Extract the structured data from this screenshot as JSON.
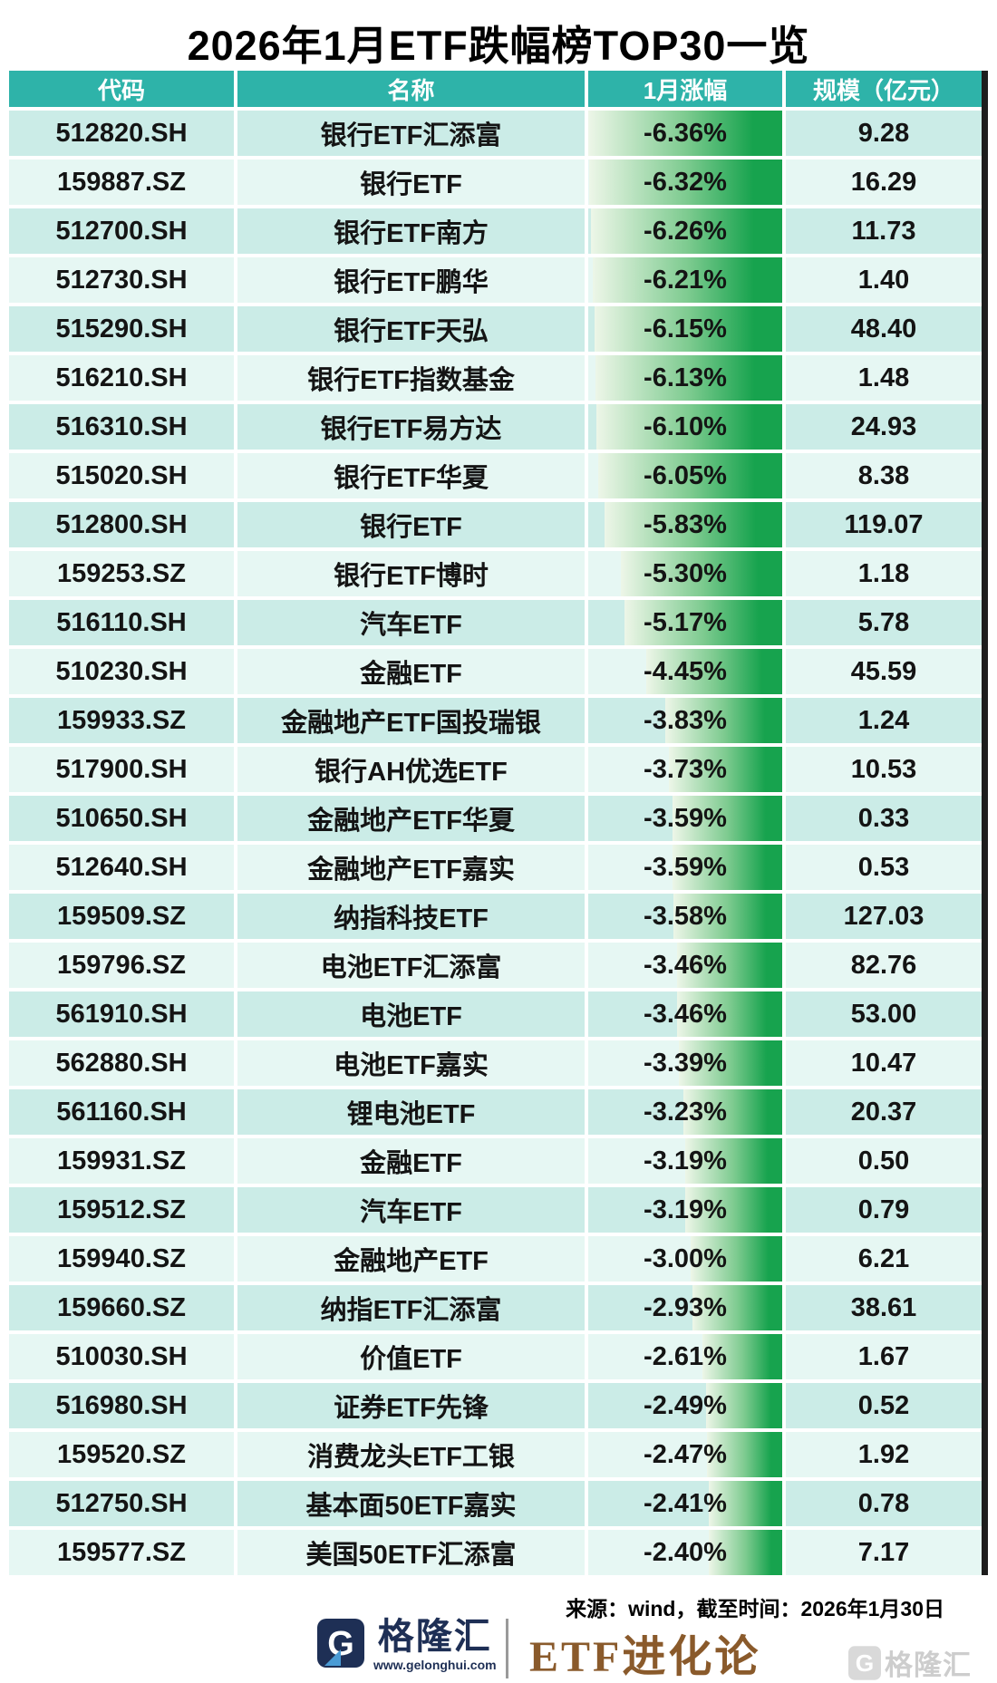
{
  "title": "2026年1月ETF跌幅榜TOP30一览",
  "chart_data": {
    "type": "table",
    "title": "2026年1月ETF跌幅榜TOP30一览",
    "columns": [
      "代码",
      "名称",
      "1月涨幅",
      "规模（亿元）"
    ],
    "bar_column": "1月涨幅",
    "bar_max_abs_pct": 6.36,
    "rows": [
      {
        "code": "512820.SH",
        "name": "银行ETF汇添富",
        "change_label": "-6.36%",
        "change_pct": -6.36,
        "scale": "9.28"
      },
      {
        "code": "159887.SZ",
        "name": "银行ETF",
        "change_label": "-6.32%",
        "change_pct": -6.32,
        "scale": "16.29"
      },
      {
        "code": "512700.SH",
        "name": "银行ETF南方",
        "change_label": "-6.26%",
        "change_pct": -6.26,
        "scale": "11.73"
      },
      {
        "code": "512730.SH",
        "name": "银行ETF鹏华",
        "change_label": "-6.21%",
        "change_pct": -6.21,
        "scale": "1.40"
      },
      {
        "code": "515290.SH",
        "name": "银行ETF天弘",
        "change_label": "-6.15%",
        "change_pct": -6.15,
        "scale": "48.40"
      },
      {
        "code": "516210.SH",
        "name": "银行ETF指数基金",
        "change_label": "-6.13%",
        "change_pct": -6.13,
        "scale": "1.48"
      },
      {
        "code": "516310.SH",
        "name": "银行ETF易方达",
        "change_label": "-6.10%",
        "change_pct": -6.1,
        "scale": "24.93"
      },
      {
        "code": "515020.SH",
        "name": "银行ETF华夏",
        "change_label": "-6.05%",
        "change_pct": -6.05,
        "scale": "8.38"
      },
      {
        "code": "512800.SH",
        "name": "银行ETF",
        "change_label": "-5.83%",
        "change_pct": -5.83,
        "scale": "119.07"
      },
      {
        "code": "159253.SZ",
        "name": "银行ETF博时",
        "change_label": "-5.30%",
        "change_pct": -5.3,
        "scale": "1.18"
      },
      {
        "code": "516110.SH",
        "name": "汽车ETF",
        "change_label": "-5.17%",
        "change_pct": -5.17,
        "scale": "5.78"
      },
      {
        "code": "510230.SH",
        "name": "金融ETF",
        "change_label": "-4.45%",
        "change_pct": -4.45,
        "scale": "45.59"
      },
      {
        "code": "159933.SZ",
        "name": "金融地产ETF国投瑞银",
        "change_label": "-3.83%",
        "change_pct": -3.83,
        "scale": "1.24"
      },
      {
        "code": "517900.SH",
        "name": "银行AH优选ETF",
        "change_label": "-3.73%",
        "change_pct": -3.73,
        "scale": "10.53"
      },
      {
        "code": "510650.SH",
        "name": "金融地产ETF华夏",
        "change_label": "-3.59%",
        "change_pct": -3.59,
        "scale": "0.33"
      },
      {
        "code": "512640.SH",
        "name": "金融地产ETF嘉实",
        "change_label": "-3.59%",
        "change_pct": -3.59,
        "scale": "0.53"
      },
      {
        "code": "159509.SZ",
        "name": "纳指科技ETF",
        "change_label": "-3.58%",
        "change_pct": -3.58,
        "scale": "127.03"
      },
      {
        "code": "159796.SZ",
        "name": "电池ETF汇添富",
        "change_label": "-3.46%",
        "change_pct": -3.46,
        "scale": "82.76"
      },
      {
        "code": "561910.SH",
        "name": "电池ETF",
        "change_label": "-3.46%",
        "change_pct": -3.46,
        "scale": "53.00"
      },
      {
        "code": "562880.SH",
        "name": "电池ETF嘉实",
        "change_label": "-3.39%",
        "change_pct": -3.39,
        "scale": "10.47"
      },
      {
        "code": "561160.SH",
        "name": "锂电池ETF",
        "change_label": "-3.23%",
        "change_pct": -3.23,
        "scale": "20.37"
      },
      {
        "code": "159931.SZ",
        "name": "金融ETF",
        "change_label": "-3.19%",
        "change_pct": -3.19,
        "scale": "0.50"
      },
      {
        "code": "159512.SZ",
        "name": "汽车ETF",
        "change_label": "-3.19%",
        "change_pct": -3.19,
        "scale": "0.79"
      },
      {
        "code": "159940.SZ",
        "name": "金融地产ETF",
        "change_label": "-3.00%",
        "change_pct": -3.0,
        "scale": "6.21"
      },
      {
        "code": "159660.SZ",
        "name": "纳指ETF汇添富",
        "change_label": "-2.93%",
        "change_pct": -2.93,
        "scale": "38.61"
      },
      {
        "code": "510030.SH",
        "name": "价值ETF",
        "change_label": "-2.61%",
        "change_pct": -2.61,
        "scale": "1.67"
      },
      {
        "code": "516980.SH",
        "name": "证券ETF先锋",
        "change_label": "-2.49%",
        "change_pct": -2.49,
        "scale": "0.52"
      },
      {
        "code": "159520.SZ",
        "name": "消费龙头ETF工银",
        "change_label": "-2.47%",
        "change_pct": -2.47,
        "scale": "1.92"
      },
      {
        "code": "512750.SH",
        "name": "基本面50ETF嘉实",
        "change_label": "-2.41%",
        "change_pct": -2.41,
        "scale": "0.78"
      },
      {
        "code": "159577.SZ",
        "name": "美国50ETF汇添富",
        "change_label": "-2.40%",
        "change_pct": -2.4,
        "scale": "7.17"
      }
    ]
  },
  "colors": {
    "header_teal": "#2eb3a9",
    "row_odd": "#cbece7",
    "row_even": "#e6f7f3",
    "bar_gradient_light": "#edf6e8",
    "bar_gradient_mid": "#7ecb90",
    "bar_gradient_dark": "#17a34e",
    "table_right_border": "#1d1d1d",
    "brand_navy": "#1e2f55",
    "brand_accent_blue": "#4a9bd5",
    "brand_bronze": "#8a5a2b",
    "watermark_gray": "#9c9c9c"
  },
  "footer": {
    "source": "来源：wind，截至时间：2026年1月30日",
    "brand_left_name": "格隆汇",
    "brand_left_url": "www.gelonghui.com",
    "brand_right_name": "ETF进化论",
    "watermark_text": "格隆汇"
  }
}
